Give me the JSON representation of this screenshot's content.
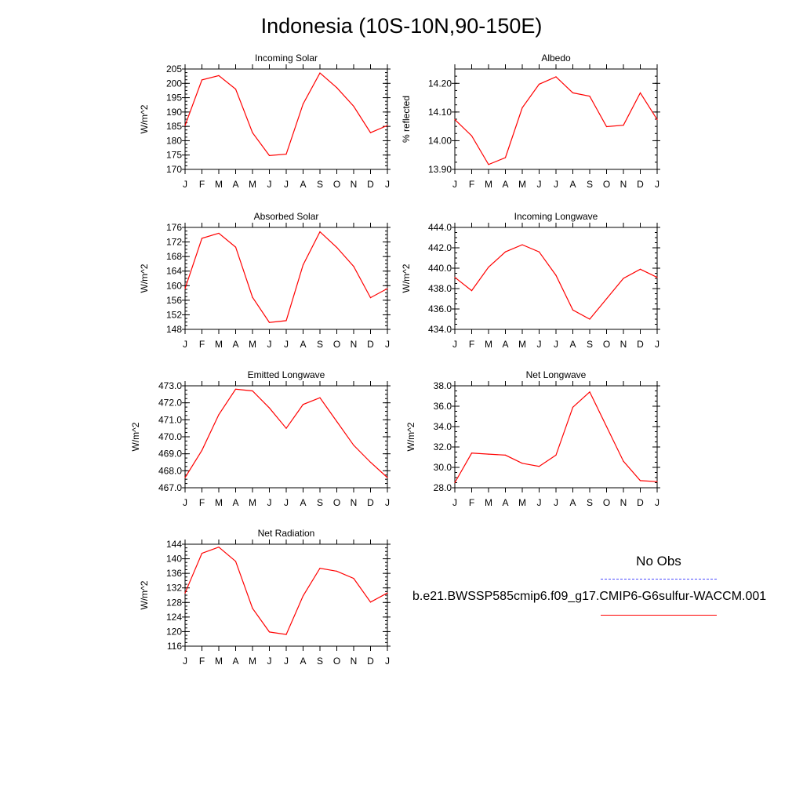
{
  "page": {
    "title": "Indonesia (10S-10N,90-150E)"
  },
  "legend": {
    "obs_label": "No Obs",
    "obs_color": "#4b4bff",
    "model_label": "b.e21.BWSSP585cmip6.f09_g17.CMIP6-G6sulfur-WACCM.001",
    "model_color": "#ff0000"
  },
  "chart_data": [
    {
      "type": "line",
      "title": "Incoming Solar",
      "ylabel": "W/m^2",
      "categories": [
        "J",
        "F",
        "M",
        "A",
        "M",
        "J",
        "J",
        "A",
        "S",
        "O",
        "N",
        "D",
        "J"
      ],
      "ylim": [
        170,
        205
      ],
      "yticks": [
        "170",
        "175",
        "180",
        "185",
        "190",
        "195",
        "200",
        "205"
      ],
      "values": [
        185.3,
        201.2,
        202.7,
        198.0,
        182.8,
        174.8,
        175.3,
        192.8,
        203.6,
        198.5,
        192.0,
        182.8,
        185.3
      ]
    },
    {
      "type": "line",
      "title": "Albedo",
      "ylabel": "% reflected",
      "categories": [
        "J",
        "F",
        "M",
        "A",
        "M",
        "J",
        "J",
        "A",
        "S",
        "O",
        "N",
        "D",
        "J"
      ],
      "ylim": [
        13.9,
        14.25
      ],
      "yticks": [
        "13.90",
        "14.00",
        "14.10",
        "14.20"
      ],
      "values": [
        14.074,
        14.017,
        13.917,
        13.941,
        14.115,
        14.197,
        14.223,
        14.167,
        14.155,
        14.049,
        14.054,
        14.167,
        14.074
      ]
    },
    {
      "type": "line",
      "title": "Absorbed Solar",
      "ylabel": "W/m^2",
      "categories": [
        "J",
        "F",
        "M",
        "A",
        "M",
        "J",
        "J",
        "A",
        "S",
        "O",
        "N",
        "D",
        "J"
      ],
      "ylim": [
        148,
        176
      ],
      "yticks": [
        "148",
        "152",
        "156",
        "160",
        "164",
        "168",
        "172",
        "176"
      ],
      "values": [
        159.2,
        173.0,
        174.4,
        170.6,
        156.8,
        149.9,
        150.4,
        165.7,
        174.8,
        170.5,
        165.3,
        156.7,
        159.2
      ]
    },
    {
      "type": "line",
      "title": "Incoming Longwave",
      "ylabel": "W/m^2",
      "categories": [
        "J",
        "F",
        "M",
        "A",
        "M",
        "J",
        "J",
        "A",
        "S",
        "O",
        "N",
        "D",
        "J"
      ],
      "ylim": [
        434,
        444
      ],
      "yticks": [
        "434.0",
        "436.0",
        "438.0",
        "440.0",
        "442.0",
        "444.0"
      ],
      "values": [
        439.1,
        437.8,
        440.1,
        441.6,
        442.3,
        441.6,
        439.3,
        435.9,
        435.0,
        437.0,
        439.0,
        439.9,
        439.1
      ]
    },
    {
      "type": "line",
      "title": "Emitted Longwave",
      "ylabel": "W/m^2",
      "categories": [
        "J",
        "F",
        "M",
        "A",
        "M",
        "J",
        "J",
        "A",
        "S",
        "O",
        "N",
        "D",
        "J"
      ],
      "ylim": [
        467,
        473
      ],
      "yticks": [
        "467.0",
        "468.0",
        "469.0",
        "470.0",
        "471.0",
        "472.0",
        "473.0"
      ],
      "values": [
        467.6,
        469.2,
        471.3,
        472.8,
        472.7,
        471.7,
        470.5,
        471.9,
        472.3,
        470.9,
        469.5,
        468.5,
        467.6
      ]
    },
    {
      "type": "line",
      "title": "Net Longwave",
      "ylabel": "W/m^2",
      "categories": [
        "J",
        "F",
        "M",
        "A",
        "M",
        "J",
        "J",
        "A",
        "S",
        "O",
        "N",
        "D",
        "J"
      ],
      "ylim": [
        28,
        38
      ],
      "yticks": [
        "28.0",
        "30.0",
        "32.0",
        "34.0",
        "36.0",
        "38.0"
      ],
      "values": [
        28.5,
        31.4,
        31.3,
        31.2,
        30.4,
        30.1,
        31.2,
        35.9,
        37.4,
        34.0,
        30.6,
        28.7,
        28.6
      ]
    },
    {
      "type": "line",
      "title": "Net Radiation",
      "ylabel": "W/m^2",
      "categories": [
        "J",
        "F",
        "M",
        "A",
        "M",
        "J",
        "J",
        "A",
        "S",
        "O",
        "N",
        "D",
        "J"
      ],
      "ylim": [
        116,
        144
      ],
      "yticks": [
        "116",
        "120",
        "124",
        "128",
        "132",
        "136",
        "140",
        "144"
      ],
      "values": [
        130.6,
        141.5,
        143.2,
        139.3,
        126.4,
        119.9,
        119.2,
        129.8,
        137.4,
        136.6,
        134.6,
        128.1,
        130.6
      ]
    }
  ]
}
